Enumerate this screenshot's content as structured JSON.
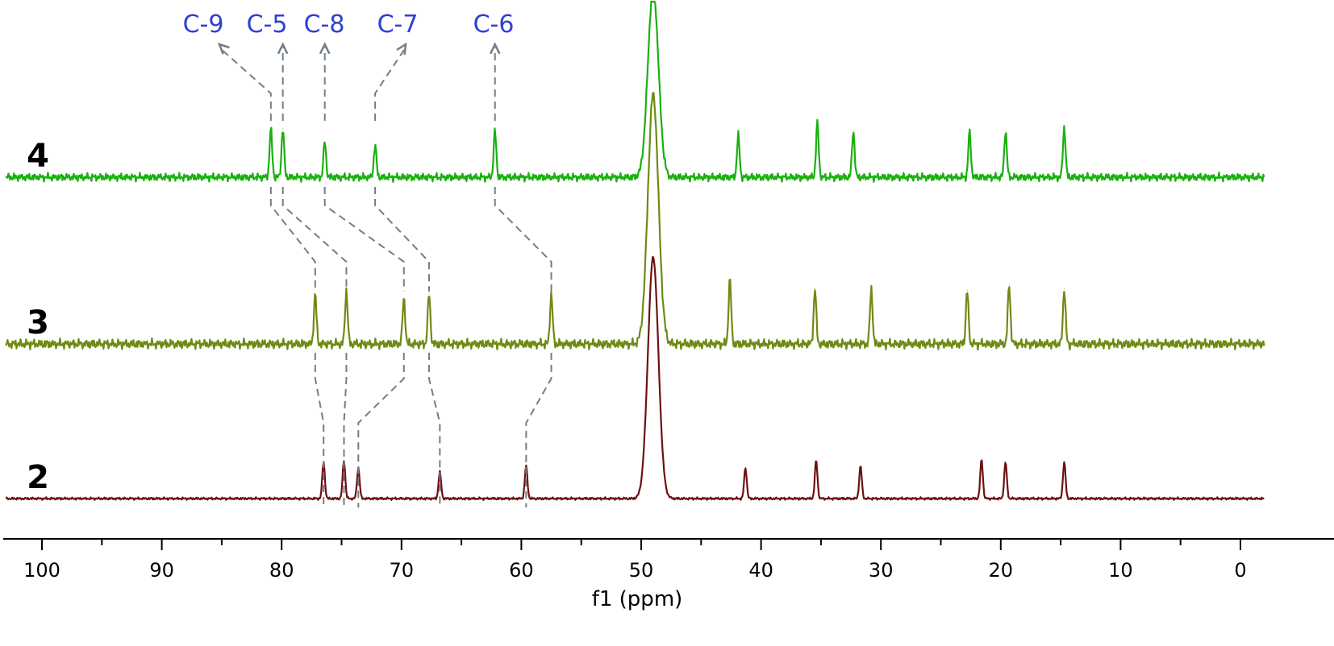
{
  "chart_data": {
    "type": "line",
    "xlabel": "f1 (ppm)",
    "x_reversed": true,
    "xlim": [
      103,
      -2
    ],
    "x_ticks": [
      100,
      90,
      80,
      70,
      60,
      50,
      40,
      30,
      20,
      10,
      0
    ],
    "solvent_peak_ppm": 49.0,
    "series": [
      {
        "name": "4",
        "color": "#1ab00f",
        "peaks": [
          {
            "ppm": 80.9,
            "height": 0.75
          },
          {
            "ppm": 79.9,
            "height": 0.75
          },
          {
            "ppm": 76.4,
            "height": 0.55
          },
          {
            "ppm": 72.2,
            "height": 0.5
          },
          {
            "ppm": 62.2,
            "height": 0.72
          },
          {
            "ppm": 41.9,
            "height": 0.65
          },
          {
            "ppm": 35.3,
            "height": 0.85
          },
          {
            "ppm": 32.3,
            "height": 0.72
          },
          {
            "ppm": 22.6,
            "height": 0.7
          },
          {
            "ppm": 19.6,
            "height": 0.72
          },
          {
            "ppm": 14.7,
            "height": 0.78
          }
        ]
      },
      {
        "name": "3",
        "color": "#6f8a13",
        "peaks": [
          {
            "ppm": 77.2,
            "height": 0.65
          },
          {
            "ppm": 74.6,
            "height": 0.7
          },
          {
            "ppm": 69.8,
            "height": 0.6
          },
          {
            "ppm": 67.7,
            "height": 0.65
          },
          {
            "ppm": 57.5,
            "height": 0.65
          },
          {
            "ppm": 42.6,
            "height": 0.85
          },
          {
            "ppm": 35.5,
            "height": 0.72
          },
          {
            "ppm": 30.8,
            "height": 0.72
          },
          {
            "ppm": 22.8,
            "height": 0.7
          },
          {
            "ppm": 19.3,
            "height": 0.77
          },
          {
            "ppm": 14.7,
            "height": 0.72
          }
        ]
      },
      {
        "name": "2",
        "color": "#6e1012",
        "peaks": [
          {
            "ppm": 76.5,
            "height": 0.65
          },
          {
            "ppm": 74.8,
            "height": 0.68
          },
          {
            "ppm": 73.6,
            "height": 0.55
          },
          {
            "ppm": 66.8,
            "height": 0.47
          },
          {
            "ppm": 59.6,
            "height": 0.58
          },
          {
            "ppm": 41.3,
            "height": 0.55
          },
          {
            "ppm": 35.4,
            "height": 0.68
          },
          {
            "ppm": 31.7,
            "height": 0.58
          },
          {
            "ppm": 21.6,
            "height": 0.7
          },
          {
            "ppm": 19.6,
            "height": 0.65
          },
          {
            "ppm": 14.7,
            "height": 0.65
          }
        ]
      }
    ],
    "annotations": [
      {
        "text": "C-9",
        "shifts": [
          80.9,
          77.2,
          76.5
        ]
      },
      {
        "text": "C-5",
        "shifts": [
          79.9,
          74.6,
          74.8
        ]
      },
      {
        "text": "C-8",
        "shifts": [
          76.4,
          69.8,
          73.6
        ]
      },
      {
        "text": "C-7",
        "shifts": [
          72.2,
          67.7,
          66.8
        ]
      },
      {
        "text": "C-6",
        "shifts": [
          62.2,
          57.5,
          59.6
        ]
      }
    ],
    "label_color": "#2d3fd4",
    "guide_color": "#6f7f8a"
  }
}
